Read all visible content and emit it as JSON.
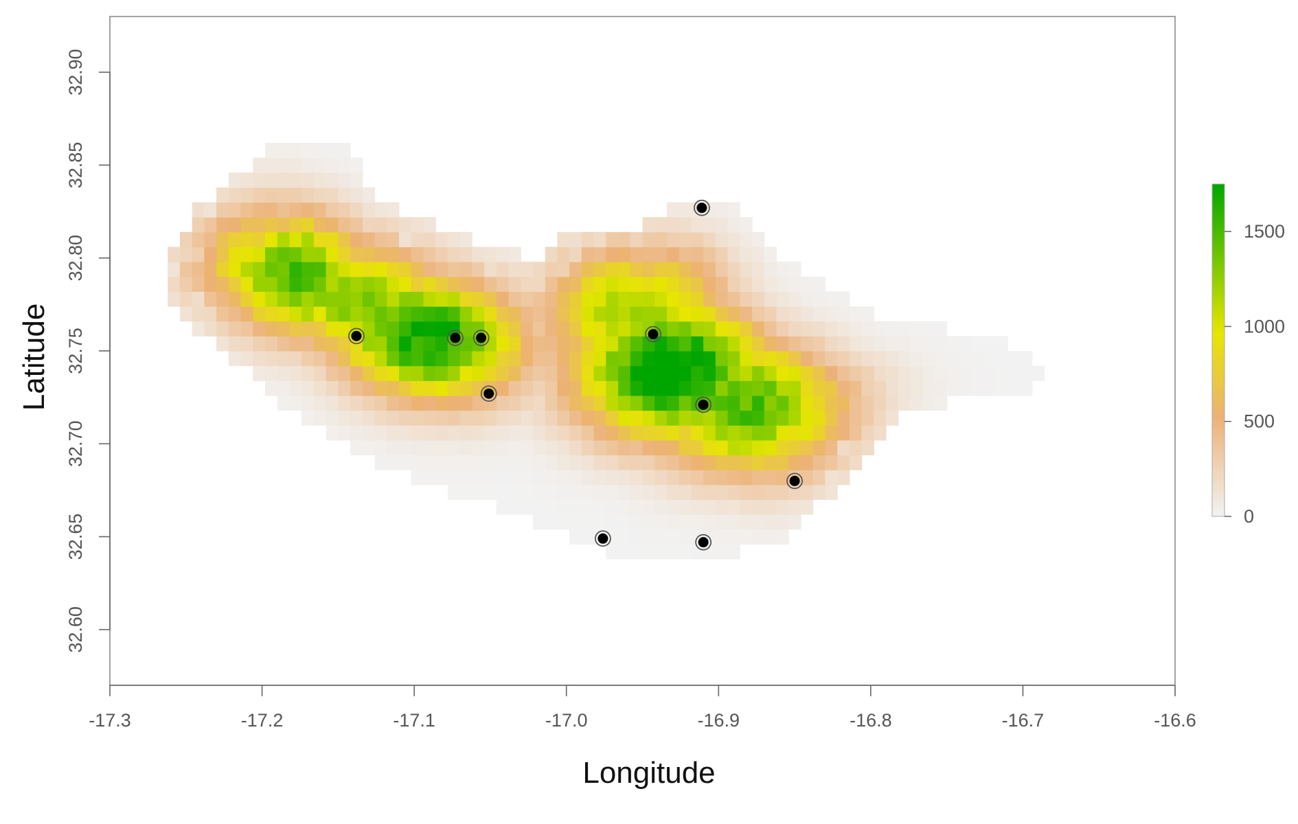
{
  "chart_data": {
    "type": "heatmap",
    "title": "",
    "xlabel": "Longitude",
    "ylabel": "Latitude",
    "xlim": [
      -17.3,
      -16.6
    ],
    "ylim": [
      32.57,
      32.93
    ],
    "x_ticks": [
      "-17.3",
      "-17.2",
      "-17.1",
      "-17.0",
      "-16.9",
      "-16.8",
      "-16.7",
      "-16.6"
    ],
    "x_tick_values": [
      -17.3,
      -17.2,
      -17.1,
      -17.0,
      -16.9,
      -16.8,
      -16.7,
      -16.6
    ],
    "y_ticks": [
      "32.60",
      "32.65",
      "32.70",
      "32.75",
      "32.80",
      "32.85",
      "32.90"
    ],
    "y_tick_values": [
      32.6,
      32.65,
      32.7,
      32.75,
      32.8,
      32.85,
      32.9
    ],
    "grid": false,
    "legend_placement": "right",
    "colorbar": {
      "ticks": [
        "0",
        "500",
        "1000",
        "1500"
      ],
      "tick_values": [
        0,
        500,
        1000,
        1500
      ],
      "range": [
        0,
        1750
      ],
      "colors": [
        "#f2f2f2",
        "#ecb176",
        "#e6e600",
        "#00a600"
      ]
    },
    "raster": {
      "cell_size": 0.008,
      "peaks": [
        {
          "lon": -17.09,
          "lat": 32.76,
          "elevation": 1600
        },
        {
          "lon": -16.93,
          "lat": 32.74,
          "elevation": 1750
        },
        {
          "lon": -17.18,
          "lat": 32.79,
          "elevation": 1350
        },
        {
          "lon": -16.88,
          "lat": 32.72,
          "elevation": 1350
        },
        {
          "lon": -17.13,
          "lat": 32.78,
          "elevation": 1250
        },
        {
          "lon": -16.96,
          "lat": 32.78,
          "elevation": 1250
        },
        {
          "lon": -16.85,
          "lat": 32.71,
          "elevation": 1050
        },
        {
          "lon": -17.21,
          "lat": 32.8,
          "elevation": 1000
        }
      ]
    },
    "points": [
      {
        "lon": -16.911,
        "lat": 32.827
      },
      {
        "lon": -17.138,
        "lat": 32.758
      },
      {
        "lon": -17.073,
        "lat": 32.757
      },
      {
        "lon": -17.056,
        "lat": 32.757
      },
      {
        "lon": -16.943,
        "lat": 32.759
      },
      {
        "lon": -17.051,
        "lat": 32.727
      },
      {
        "lon": -16.91,
        "lat": 32.721
      },
      {
        "lon": -16.85,
        "lat": 32.68
      },
      {
        "lon": -16.976,
        "lat": 32.649
      },
      {
        "lon": -16.91,
        "lat": 32.647
      }
    ]
  }
}
